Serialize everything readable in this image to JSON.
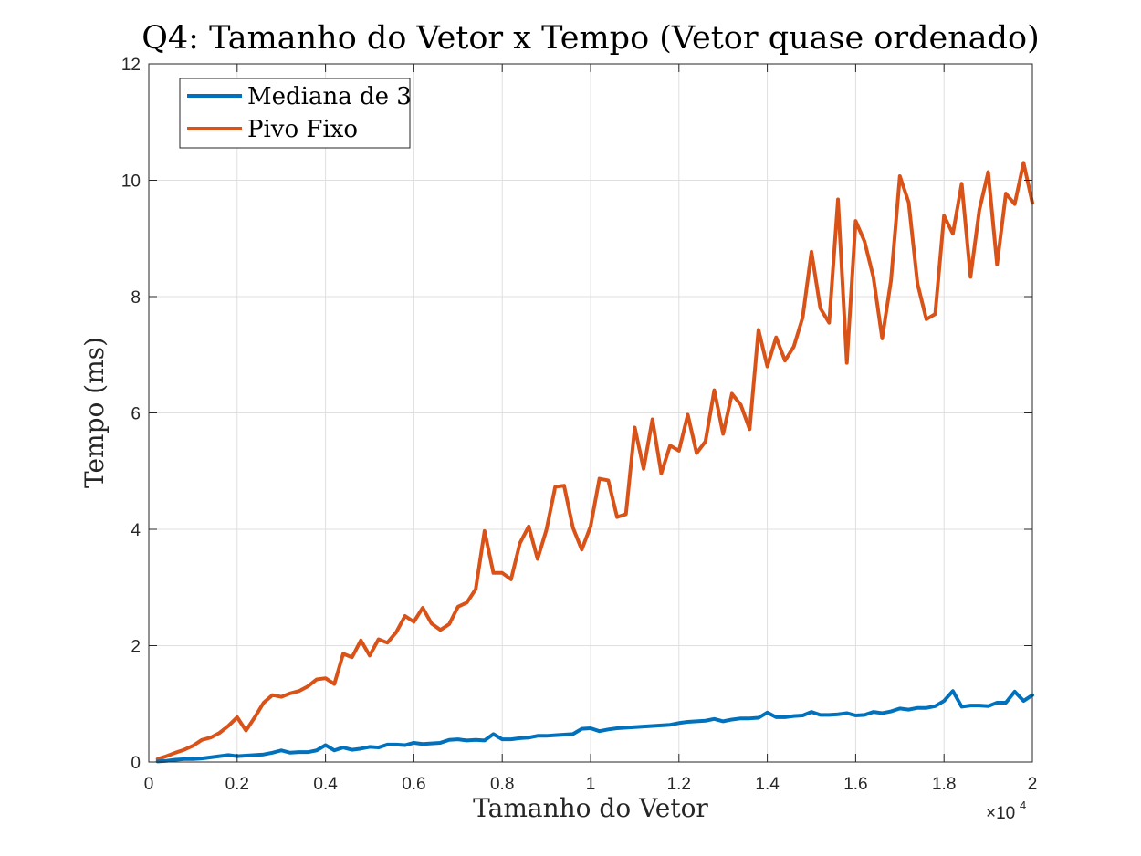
{
  "chart_data": {
    "type": "line",
    "title": "Q4: Tamanho do Vetor x Tempo (Vetor quase ordenado)",
    "xlabel": "Tamanho do Vetor",
    "ylabel": "Tempo (ms)",
    "x_exponent_label": "×10",
    "x_exponent_power": "4",
    "xlim": [
      0,
      20000
    ],
    "ylim": [
      0,
      12
    ],
    "x_ticks": [
      0,
      2000,
      4000,
      6000,
      8000,
      10000,
      12000,
      14000,
      16000,
      18000,
      20000
    ],
    "x_tick_labels": [
      "0",
      "0.2",
      "0.4",
      "0.6",
      "0.8",
      "1",
      "1.2",
      "1.4",
      "1.6",
      "1.8",
      "2"
    ],
    "y_ticks": [
      0,
      2,
      4,
      6,
      8,
      10,
      12
    ],
    "y_tick_labels": [
      "0",
      "2",
      "4",
      "6",
      "8",
      "10",
      "12"
    ],
    "grid": true,
    "legend_position": "top-left",
    "x": [
      200,
      400,
      600,
      800,
      1000,
      1200,
      1400,
      1600,
      1800,
      2000,
      2200,
      2400,
      2600,
      2800,
      3000,
      3200,
      3400,
      3600,
      3800,
      4000,
      4200,
      4400,
      4600,
      4800,
      5000,
      5200,
      5400,
      5600,
      5800,
      6000,
      6200,
      6400,
      6600,
      6800,
      7000,
      7200,
      7400,
      7600,
      7800,
      8000,
      8200,
      8400,
      8600,
      8800,
      9000,
      9200,
      9400,
      9600,
      9800,
      10000,
      10200,
      10400,
      10600,
      10800,
      11000,
      11200,
      11400,
      11600,
      11800,
      12000,
      12200,
      12400,
      12600,
      12800,
      13000,
      13200,
      13400,
      13600,
      13800,
      14000,
      14200,
      14400,
      14600,
      14800,
      15000,
      15200,
      15400,
      15600,
      15800,
      16000,
      16200,
      16400,
      16600,
      16800,
      17000,
      17200,
      17400,
      17600,
      17800,
      18000,
      18200,
      18400,
      18600,
      18800,
      19000,
      19200,
      19400,
      19600,
      19800,
      20000
    ],
    "series": [
      {
        "name": "Mediana de 3",
        "color": "#0072BD",
        "values": [
          0.01,
          0.02,
          0.04,
          0.05,
          0.05,
          0.06,
          0.08,
          0.1,
          0.12,
          0.1,
          0.11,
          0.12,
          0.13,
          0.16,
          0.2,
          0.16,
          0.17,
          0.17,
          0.2,
          0.29,
          0.2,
          0.25,
          0.21,
          0.23,
          0.26,
          0.25,
          0.3,
          0.3,
          0.29,
          0.33,
          0.31,
          0.32,
          0.33,
          0.38,
          0.39,
          0.37,
          0.38,
          0.37,
          0.48,
          0.39,
          0.39,
          0.41,
          0.42,
          0.45,
          0.45,
          0.46,
          0.47,
          0.48,
          0.57,
          0.58,
          0.53,
          0.56,
          0.58,
          0.59,
          0.6,
          0.61,
          0.62,
          0.63,
          0.64,
          0.67,
          0.69,
          0.7,
          0.71,
          0.74,
          0.7,
          0.73,
          0.75,
          0.75,
          0.76,
          0.85,
          0.77,
          0.77,
          0.79,
          0.8,
          0.86,
          0.81,
          0.81,
          0.82,
          0.84,
          0.8,
          0.81,
          0.86,
          0.84,
          0.87,
          0.92,
          0.9,
          0.93,
          0.93,
          0.96,
          1.05,
          1.22,
          0.95,
          0.97,
          0.97,
          0.96,
          1.02,
          1.02,
          1.21,
          1.05,
          1.15
        ]
      },
      {
        "name": "Pivo Fixo",
        "color": "#D95319",
        "values": [
          0.05,
          0.1,
          0.16,
          0.21,
          0.28,
          0.38,
          0.42,
          0.5,
          0.62,
          0.77,
          0.54,
          0.77,
          1.02,
          1.15,
          1.12,
          1.18,
          1.22,
          1.3,
          1.42,
          1.44,
          1.34,
          1.86,
          1.8,
          2.09,
          1.83,
          2.11,
          2.05,
          2.23,
          2.51,
          2.41,
          2.65,
          2.38,
          2.27,
          2.37,
          2.67,
          2.74,
          2.97,
          3.97,
          3.25,
          3.25,
          3.14,
          3.76,
          4.05,
          3.49,
          3.99,
          4.73,
          4.75,
          4.03,
          3.65,
          4.05,
          4.87,
          4.84,
          4.21,
          4.26,
          5.75,
          5.04,
          5.89,
          4.96,
          5.44,
          5.35,
          5.97,
          5.31,
          5.51,
          6.39,
          5.64,
          6.33,
          6.14,
          5.72,
          7.43,
          6.8,
          7.3,
          6.9,
          7.14,
          7.64,
          8.77,
          7.8,
          7.55,
          9.67,
          6.86,
          9.3,
          8.95,
          8.34,
          7.28,
          8.28,
          10.07,
          9.62,
          8.22,
          7.61,
          7.7,
          9.39,
          9.08,
          9.94,
          8.34,
          9.49,
          10.14,
          8.55,
          9.77,
          9.59,
          10.3,
          9.61
        ]
      }
    ]
  }
}
